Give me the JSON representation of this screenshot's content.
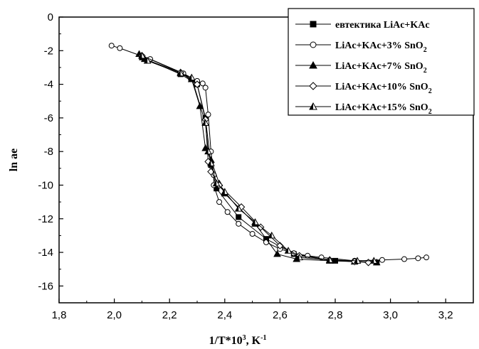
{
  "chart_data": {
    "type": "line",
    "xlabel": {
      "base": "1/T*10",
      "sup1": "3",
      "mid": ", K",
      "sup2": "-1"
    },
    "ylabel": "ln ae",
    "xlim": [
      1.8,
      3.3
    ],
    "ylim": [
      -17,
      0
    ],
    "xticks": [
      "1,8",
      "2,0",
      "2,2",
      "2,4",
      "2,6",
      "2,8",
      "3,0",
      "3,2"
    ],
    "yticks": [
      "0",
      "-2",
      "-4",
      "-6",
      "-8",
      "-10",
      "-12",
      "-14",
      "-16"
    ],
    "grid": false,
    "legend_position": "top-right",
    "series": [
      {
        "name": "евтектика LiAc+KAc",
        "name_sub": "",
        "marker": "square-filled",
        "color": "#000000",
        "points": [
          [
            2.1,
            -2.4
          ],
          [
            2.24,
            -3.4
          ],
          [
            2.3,
            -4.0
          ],
          [
            2.33,
            -6.0
          ],
          [
            2.35,
            -8.8
          ],
          [
            2.37,
            -10.2
          ],
          [
            2.45,
            -11.9
          ],
          [
            2.55,
            -13.2
          ],
          [
            2.65,
            -14.1
          ],
          [
            2.8,
            -14.5
          ],
          [
            2.95,
            -14.6
          ]
        ]
      },
      {
        "name": "LiAc+KAc+3% SnO",
        "name_sub": "2",
        "marker": "circle-open",
        "color": "#000000",
        "points": [
          [
            1.99,
            -1.7
          ],
          [
            2.02,
            -1.85
          ],
          [
            2.13,
            -2.5
          ],
          [
            2.25,
            -3.35
          ],
          [
            2.3,
            -3.8
          ],
          [
            2.32,
            -3.95
          ],
          [
            2.33,
            -4.2
          ],
          [
            2.34,
            -5.8
          ],
          [
            2.35,
            -8.0
          ],
          [
            2.36,
            -9.4
          ],
          [
            2.36,
            -10.0
          ],
          [
            2.38,
            -11.0
          ],
          [
            2.41,
            -11.6
          ],
          [
            2.45,
            -12.3
          ],
          [
            2.5,
            -12.9
          ],
          [
            2.55,
            -13.4
          ],
          [
            2.6,
            -13.8
          ],
          [
            2.65,
            -14.05
          ],
          [
            2.7,
            -14.2
          ],
          [
            2.75,
            -14.3
          ],
          [
            2.87,
            -14.5
          ],
          [
            2.97,
            -14.45
          ],
          [
            3.05,
            -14.4
          ],
          [
            3.1,
            -14.35
          ],
          [
            3.13,
            -14.3
          ]
        ]
      },
      {
        "name": "LiAc+KAc+7% SnO",
        "name_sub": "2",
        "marker": "triangle-filled",
        "color": "#000000",
        "points": [
          [
            2.09,
            -2.2
          ],
          [
            2.11,
            -2.5
          ],
          [
            2.24,
            -3.3
          ],
          [
            2.28,
            -3.7
          ],
          [
            2.31,
            -5.3
          ],
          [
            2.33,
            -7.8
          ],
          [
            2.35,
            -8.5
          ],
          [
            2.38,
            -9.9
          ],
          [
            2.4,
            -10.5
          ],
          [
            2.51,
            -12.3
          ],
          [
            2.59,
            -14.1
          ],
          [
            2.66,
            -14.4
          ],
          [
            2.78,
            -14.5
          ],
          [
            2.87,
            -14.55
          ],
          [
            2.95,
            -14.6
          ]
        ]
      },
      {
        "name": "LiAc+KAc+10% SnO",
        "name_sub": "2",
        "marker": "diamond-open",
        "color": "#000000",
        "points": [
          [
            2.1,
            -2.3
          ],
          [
            2.24,
            -3.3
          ],
          [
            2.3,
            -4.0
          ],
          [
            2.33,
            -6.1
          ],
          [
            2.34,
            -8.6
          ],
          [
            2.35,
            -9.2
          ],
          [
            2.38,
            -10.0
          ],
          [
            2.46,
            -11.3
          ],
          [
            2.53,
            -12.5
          ],
          [
            2.6,
            -13.6
          ],
          [
            2.67,
            -14.2
          ],
          [
            2.78,
            -14.45
          ],
          [
            2.87,
            -14.55
          ],
          [
            2.92,
            -14.6
          ]
        ]
      },
      {
        "name": "LiAc+KAc+15% SnO",
        "name_sub": "2",
        "marker": "triangle-half",
        "color": "#000000",
        "points": [
          [
            2.1,
            -2.3
          ],
          [
            2.12,
            -2.6
          ],
          [
            2.24,
            -3.35
          ],
          [
            2.28,
            -3.6
          ],
          [
            2.33,
            -6.3
          ],
          [
            2.34,
            -8.0
          ],
          [
            2.35,
            -8.7
          ],
          [
            2.37,
            -9.9
          ],
          [
            2.4,
            -10.4
          ],
          [
            2.45,
            -11.4
          ],
          [
            2.51,
            -12.2
          ],
          [
            2.57,
            -13.0
          ],
          [
            2.63,
            -13.9
          ],
          [
            2.67,
            -14.3
          ],
          [
            2.78,
            -14.45
          ],
          [
            2.88,
            -14.5
          ],
          [
            2.94,
            -14.5
          ]
        ]
      }
    ]
  }
}
